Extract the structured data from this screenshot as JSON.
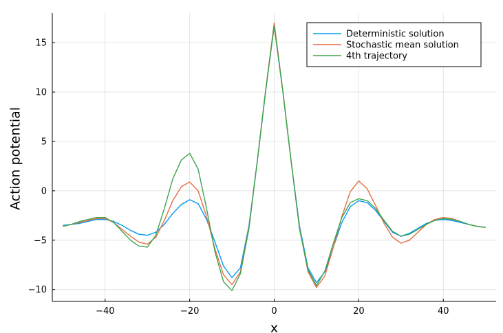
{
  "chart_data": {
    "type": "line",
    "xlabel": "x",
    "ylabel": "Action potential",
    "xlim": [
      -52.5,
      52.5
    ],
    "ylim": [
      -11.2,
      18.0
    ],
    "x_ticks": [
      -40,
      -20,
      0,
      20,
      40
    ],
    "y_ticks": [
      -10,
      -5,
      0,
      5,
      10,
      15
    ],
    "x_tick_labels": [
      "−40",
      "−20",
      "0",
      "20",
      "40"
    ],
    "y_tick_labels": [
      "−10",
      "−5",
      "0",
      "5",
      "10",
      "15"
    ],
    "grid": true,
    "legend_position": "top-right",
    "series": [
      {
        "name": "Deterministic solution",
        "color": "#009af9",
        "x": [
          -50,
          -48,
          -46,
          -44,
          -42,
          -40,
          -38,
          -36,
          -34,
          -32,
          -30,
          -28,
          -26,
          -24,
          -22,
          -20,
          -18,
          -16,
          -14,
          -12,
          -10,
          -8,
          -6,
          -4,
          -2,
          0,
          2,
          4,
          6,
          8,
          10,
          12,
          14,
          16,
          18,
          20,
          22,
          24,
          26,
          28,
          30,
          32,
          34,
          36,
          38,
          40,
          42,
          44,
          46,
          48,
          50
        ],
        "y": [
          -3.5,
          -3.4,
          -3.3,
          -3.1,
          -2.9,
          -2.9,
          -3.1,
          -3.5,
          -4.0,
          -4.4,
          -4.5,
          -4.2,
          -3.4,
          -2.3,
          -1.4,
          -0.9,
          -1.3,
          -2.9,
          -5.2,
          -7.6,
          -8.8,
          -7.8,
          -3.6,
          3.0,
          10.2,
          16.7,
          10.2,
          3.0,
          -3.6,
          -7.8,
          -9.3,
          -8.2,
          -5.7,
          -3.2,
          -1.6,
          -1.0,
          -1.2,
          -2.0,
          -3.1,
          -4.2,
          -4.6,
          -4.3,
          -3.8,
          -3.3,
          -3.0,
          -2.9,
          -3.0,
          -3.2,
          -3.4,
          -3.6,
          -3.7
        ]
      },
      {
        "name": "Stochastic mean solution",
        "color": "#e26f46",
        "x": [
          -50,
          -48,
          -46,
          -44,
          -42,
          -40,
          -38,
          -36,
          -34,
          -32,
          -30,
          -28,
          -26,
          -24,
          -22,
          -20,
          -18,
          -16,
          -14,
          -12,
          -10,
          -8,
          -6,
          -4,
          -2,
          0,
          2,
          4,
          6,
          8,
          10,
          12,
          14,
          16,
          18,
          20,
          22,
          24,
          26,
          28,
          30,
          32,
          34,
          36,
          38,
          40,
          42,
          44,
          46,
          48,
          50
        ],
        "y": [
          -3.6,
          -3.4,
          -3.2,
          -3.0,
          -2.8,
          -2.8,
          -3.2,
          -3.9,
          -4.6,
          -5.2,
          -5.4,
          -4.7,
          -3.0,
          -1.0,
          0.4,
          0.9,
          0.0,
          -2.6,
          -5.9,
          -8.5,
          -9.5,
          -8.2,
          -3.8,
          3.0,
          10.3,
          17.0,
          10.3,
          3.0,
          -3.8,
          -8.2,
          -9.8,
          -8.6,
          -5.7,
          -2.6,
          -0.1,
          1.0,
          0.2,
          -1.5,
          -3.3,
          -4.7,
          -5.3,
          -5.0,
          -4.2,
          -3.4,
          -2.9,
          -2.7,
          -2.8,
          -3.1,
          -3.4,
          -3.6,
          -3.7
        ]
      },
      {
        "name": "4th trajectory",
        "color": "#3da44d",
        "x": [
          -50,
          -48,
          -46,
          -44,
          -42,
          -40,
          -38,
          -36,
          -34,
          -32,
          -30,
          -28,
          -26,
          -24,
          -22,
          -20,
          -18,
          -16,
          -14,
          -12,
          -10,
          -8,
          -6,
          -4,
          -2,
          0,
          2,
          4,
          6,
          8,
          10,
          12,
          14,
          16,
          18,
          20,
          22,
          24,
          26,
          28,
          30,
          32,
          34,
          36,
          38,
          40,
          42,
          44,
          46,
          48,
          50
        ],
        "y": [
          -3.6,
          -3.4,
          -3.1,
          -2.9,
          -2.7,
          -2.7,
          -3.2,
          -4.1,
          -5.0,
          -5.6,
          -5.7,
          -4.5,
          -1.8,
          1.2,
          3.1,
          3.8,
          2.2,
          -1.8,
          -6.2,
          -9.2,
          -10.1,
          -8.4,
          -3.9,
          3.0,
          10.2,
          16.7,
          10.2,
          3.0,
          -3.9,
          -8.0,
          -9.6,
          -8.1,
          -5.3,
          -2.7,
          -1.2,
          -0.8,
          -1.0,
          -1.8,
          -3.0,
          -4.1,
          -4.6,
          -4.4,
          -3.9,
          -3.4,
          -3.0,
          -2.8,
          -2.9,
          -3.1,
          -3.4,
          -3.6,
          -3.7
        ]
      }
    ]
  }
}
